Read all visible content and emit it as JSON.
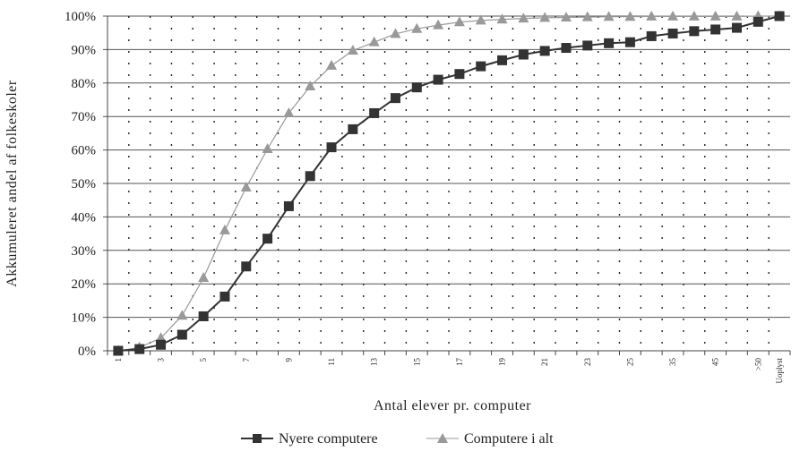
{
  "chart_data": {
    "type": "line",
    "xlabel": "Antal elever pr. computer",
    "ylabel": "Akkumuleret andel af folkeskoler",
    "ylim": [
      0,
      100
    ],
    "y_ticks": [
      "0%",
      "10%",
      "20%",
      "30%",
      "40%",
      "50%",
      "60%",
      "70%",
      "80%",
      "90%",
      "100%"
    ],
    "categories": [
      "1",
      "2",
      "3",
      "4",
      "5",
      "6",
      "7",
      "8",
      "9",
      "10",
      "11",
      "12",
      "13",
      "14",
      "15",
      "16",
      "17",
      "18",
      "19",
      "20",
      "21",
      "22",
      "23",
      "24",
      "25",
      "30",
      "35",
      "40",
      "45",
      "50",
      ">50",
      "Uoplyst"
    ],
    "x_tick_labels": [
      "1",
      "",
      "3",
      "",
      "5",
      "",
      "7",
      "",
      "9",
      "",
      "11",
      "",
      "13",
      "",
      "15",
      "",
      "17",
      "",
      "19",
      "",
      "21",
      "",
      "23",
      "",
      "25",
      "",
      "35",
      "",
      "45",
      "",
      ">50",
      "Uoplyst"
    ],
    "grid": {
      "horizontal": "solid",
      "vertical": "dotted"
    },
    "legend_position": "bottom",
    "series": [
      {
        "name": "Nyere computere",
        "color": "#333333",
        "marker": "square",
        "values": [
          0,
          0.5,
          1.8,
          4.8,
          10.3,
          16.2,
          25.2,
          33.5,
          43.2,
          52.2,
          60.8,
          66.2,
          71.0,
          75.5,
          78.7,
          81.0,
          82.7,
          85.0,
          86.8,
          88.5,
          89.6,
          90.5,
          91.2,
          91.9,
          92.2,
          94.0,
          94.8,
          95.5,
          96.0,
          96.5,
          98.3,
          100
        ]
      },
      {
        "name": "Computere i alt",
        "color": "#999999",
        "marker": "triangle",
        "values": [
          0,
          1.0,
          3.8,
          10.5,
          21.8,
          36.0,
          48.8,
          60.3,
          71.0,
          79.0,
          85.2,
          89.7,
          92.2,
          94.7,
          96.2,
          97.3,
          98.2,
          98.7,
          99.0,
          99.3,
          99.5,
          99.6,
          99.7,
          99.8,
          99.8,
          99.9,
          99.9,
          99.9,
          99.9,
          99.9,
          100,
          100
        ]
      }
    ]
  }
}
